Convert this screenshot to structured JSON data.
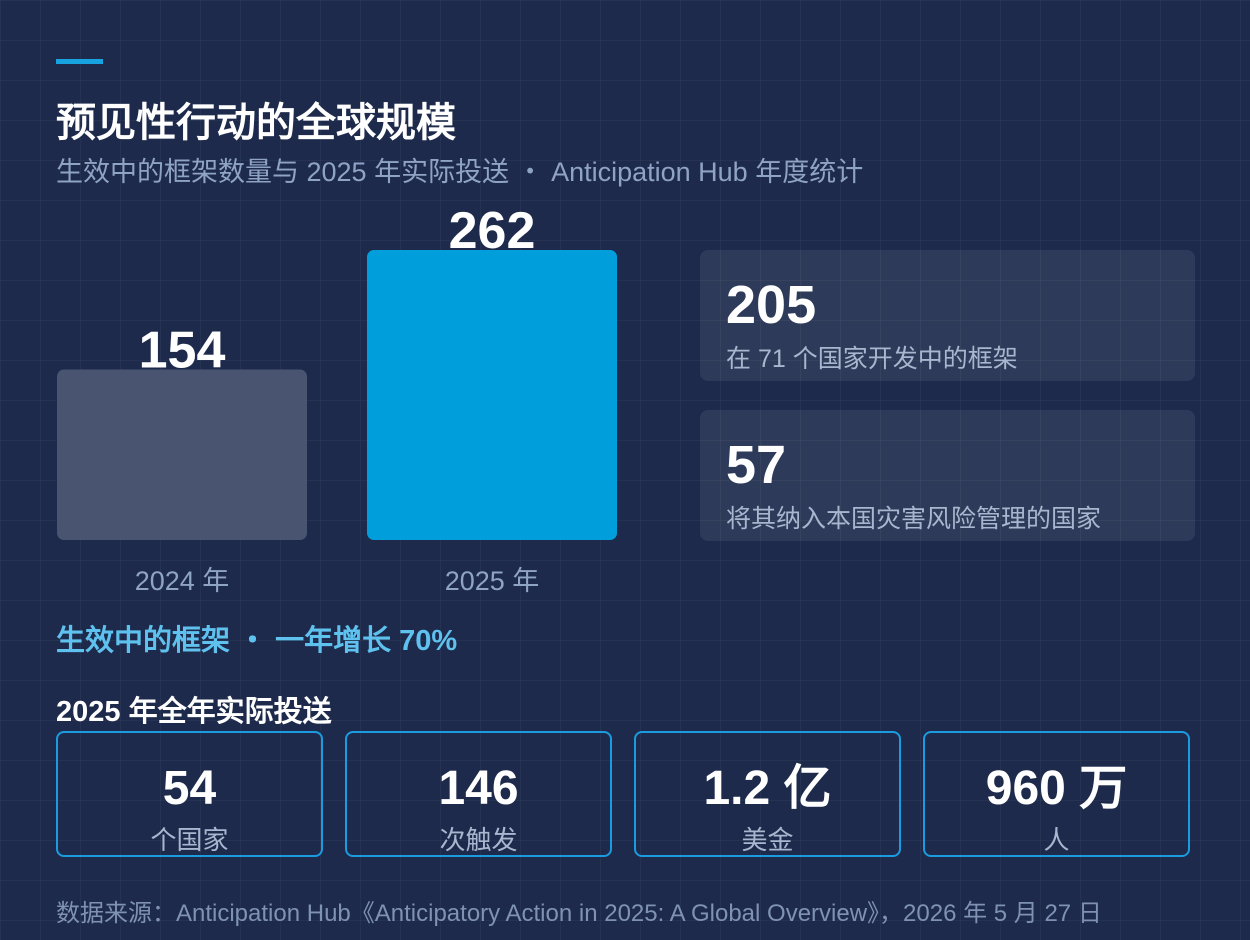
{
  "header": {
    "title": "预见性行动的全球规模",
    "subtitle": "生效中的框架数量与 2025 年实际投送 ・ Anticipation Hub 年度统计"
  },
  "chart_data": {
    "type": "bar",
    "categories": [
      "2024 年",
      "2025 年"
    ],
    "values": [
      154,
      262
    ],
    "value_labels": [
      "154",
      "262"
    ],
    "colors": [
      "#495470",
      "#009fdc"
    ],
    "ylim": [
      0,
      262
    ]
  },
  "stats": [
    {
      "value": "205",
      "label": "在 71 个国家开发中的框架"
    },
    {
      "value": "57",
      "label": "将其纳入本国灾害风险管理的国家"
    }
  ],
  "growth_note": "生效中的框架 ・ 一年增长 70%",
  "delivery": {
    "title": "2025 年全年实际投送",
    "items": [
      {
        "value": "54",
        "label": "个国家"
      },
      {
        "value": "146",
        "label": "次触发"
      },
      {
        "value": "1.2 亿",
        "label": "美金"
      },
      {
        "value": "960 万",
        "label": "人"
      }
    ]
  },
  "source": "数据来源：Anticipation Hub《Anticipatory Action in 2025: A Global Overview》，2026 年 5 月 27 日"
}
